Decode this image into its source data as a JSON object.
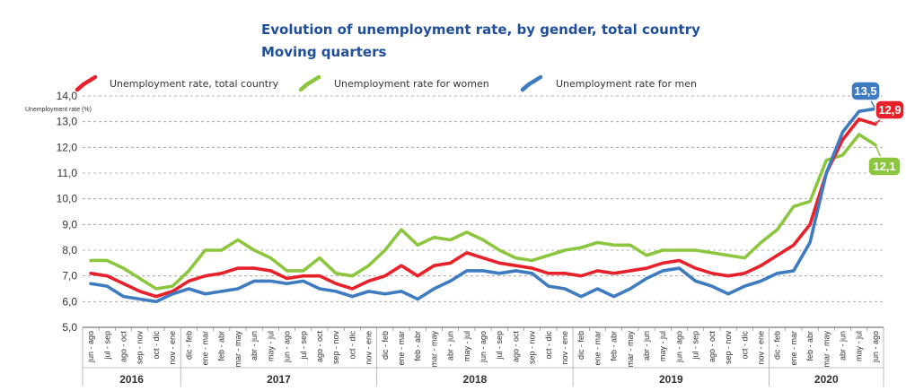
{
  "chart_data": {
    "type": "line",
    "title": "Evolution of unemployment rate, by gender, total country",
    "subtitle": "Moving quarters",
    "ylabel": "Unemployment rate (%)",
    "ylim": [
      5.0,
      14.0
    ],
    "yticks": [
      "5,0",
      "6,0",
      "7,0",
      "8,0",
      "9,0",
      "10,0",
      "11,0",
      "12,0",
      "13,0",
      "14,0"
    ],
    "grid": "horizontal dashed",
    "legend_position": "top",
    "categories": [
      "jun - ago",
      "jul - sep",
      "ago - oct",
      "sep - nov",
      "oct - dic",
      "nov - ene",
      "dic - feb",
      "ene - mar",
      "feb - abr",
      "mar - may",
      "abr - jun",
      "may - jul",
      "jun - ago",
      "jul - sep",
      "ago - oct",
      "sep - nov",
      "oct - dic",
      "nov - ene",
      "dic - feb",
      "ene - mar",
      "feb - abr",
      "mar - may",
      "abr - jun",
      "may - jul",
      "jun - ago",
      "jul - sep",
      "ago - oct",
      "sep - nov",
      "oct - dic",
      "nov - ene",
      "dic - feb",
      "ene - mar",
      "feb - abr",
      "mar - may",
      "abr - jun",
      "may - jul",
      "jun - ago",
      "jul - sep",
      "ago - oct",
      "sep - nov",
      "oct - dic",
      "nov - ene",
      "dic - feb",
      "ene - mar",
      "feb - abr",
      "mar - may",
      "abr - jun",
      "may - jul",
      "jun - ago"
    ],
    "years": [
      {
        "label": "2016",
        "start": 0,
        "end": 5
      },
      {
        "label": "2017",
        "start": 6,
        "end": 17
      },
      {
        "label": "2018",
        "start": 18,
        "end": 29
      },
      {
        "label": "2019",
        "start": 30,
        "end": 41
      },
      {
        "label": "2020",
        "start": 42,
        "end": 48
      }
    ],
    "series": [
      {
        "name": "Unemployment rate, total country",
        "color": "#e8202a",
        "end_label": "12,9",
        "values": [
          7.1,
          7.0,
          6.7,
          6.4,
          6.2,
          6.4,
          6.8,
          7.0,
          7.1,
          7.3,
          7.3,
          7.2,
          6.9,
          7.0,
          7.0,
          6.7,
          6.5,
          6.8,
          7.0,
          7.4,
          7.0,
          7.4,
          7.5,
          7.9,
          7.7,
          7.5,
          7.4,
          7.3,
          7.1,
          7.1,
          7.0,
          7.2,
          7.1,
          7.2,
          7.3,
          7.5,
          7.6,
          7.3,
          7.1,
          7.0,
          7.1,
          7.4,
          7.8,
          8.2,
          9.0,
          11.0,
          12.3,
          13.1,
          12.9
        ]
      },
      {
        "name": "Unemployment rate for women",
        "color": "#8cc63e",
        "end_label": "12,1",
        "values": [
          7.6,
          7.6,
          7.3,
          6.9,
          6.5,
          6.6,
          7.2,
          8.0,
          8.0,
          8.4,
          8.0,
          7.7,
          7.2,
          7.2,
          7.7,
          7.1,
          7.0,
          7.4,
          8.0,
          8.8,
          8.2,
          8.5,
          8.4,
          8.7,
          8.4,
          8.0,
          7.7,
          7.6,
          7.8,
          8.0,
          8.1,
          8.3,
          8.2,
          8.2,
          7.8,
          8.0,
          8.0,
          8.0,
          7.9,
          7.8,
          7.7,
          8.3,
          8.8,
          9.7,
          9.9,
          11.5,
          11.7,
          12.5,
          12.1
        ]
      },
      {
        "name": "Unemployment rate for men",
        "color": "#3f7bc1",
        "end_label": "13,5",
        "values": [
          6.7,
          6.6,
          6.2,
          6.1,
          6.0,
          6.3,
          6.5,
          6.3,
          6.4,
          6.5,
          6.8,
          6.8,
          6.7,
          6.8,
          6.5,
          6.4,
          6.2,
          6.4,
          6.3,
          6.4,
          6.1,
          6.5,
          6.8,
          7.2,
          7.2,
          7.1,
          7.2,
          7.1,
          6.6,
          6.5,
          6.2,
          6.5,
          6.2,
          6.5,
          6.9,
          7.2,
          7.3,
          6.8,
          6.6,
          6.3,
          6.6,
          6.8,
          7.1,
          7.2,
          8.3,
          11.0,
          12.6,
          13.4,
          13.5
        ]
      }
    ]
  }
}
